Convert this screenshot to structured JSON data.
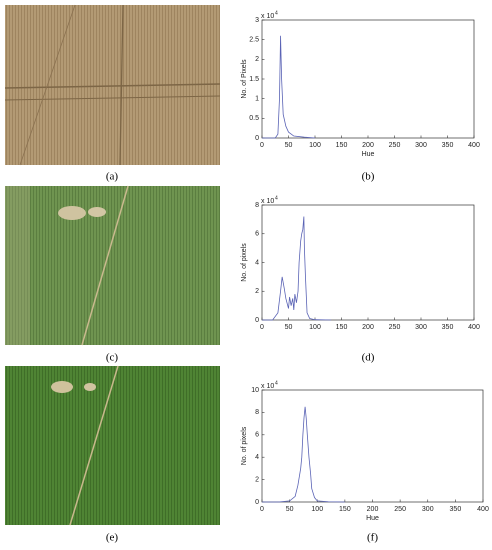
{
  "images": [
    {
      "label": "(a)"
    },
    {
      "label": "(c)"
    },
    {
      "label": "(e)"
    }
  ],
  "chart_data": [
    {
      "type": "line",
      "label": "(b)",
      "xlabel": "Hue",
      "ylabel": "No. of Pixels",
      "scale_base": "x 10",
      "scale_exp": "4",
      "x": [
        0,
        25,
        30,
        33,
        35,
        37,
        40,
        45,
        50,
        60,
        80,
        100
      ],
      "values": [
        0,
        0,
        0.1,
        1.0,
        2.6,
        1.5,
        0.6,
        0.3,
        0.15,
        0.05,
        0.02,
        0
      ],
      "color": "#5a63b5",
      "xlim": [
        0,
        400
      ],
      "ylim": [
        0,
        3
      ],
      "xticks": [
        0,
        50,
        100,
        150,
        200,
        250,
        300,
        350,
        400
      ],
      "yticks": [
        0,
        0.5,
        1,
        1.5,
        2,
        2.5,
        3
      ]
    },
    {
      "type": "line",
      "label": "(d)",
      "ylabel": "No. of pixels",
      "scale_base": "x 10",
      "scale_exp": "4",
      "x": [
        0,
        20,
        30,
        35,
        38,
        42,
        45,
        50,
        52,
        55,
        58,
        60,
        62,
        65,
        68,
        70,
        73,
        75,
        77,
        79,
        80,
        82,
        85,
        90,
        100,
        130
      ],
      "values": [
        0,
        0,
        0.5,
        2,
        3,
        2.2,
        1.5,
        0.8,
        1.6,
        1.0,
        1.5,
        0.7,
        1.8,
        1.2,
        2.0,
        4,
        5.5,
        6,
        6.3,
        7.2,
        5,
        3,
        0.5,
        0.1,
        0.02,
        0
      ],
      "color": "#5a63b5",
      "xlim": [
        0,
        400
      ],
      "ylim": [
        0,
        8
      ],
      "xticks": [
        0,
        50,
        100,
        150,
        200,
        250,
        300,
        350,
        400
      ],
      "yticks": [
        0,
        2,
        4,
        6,
        8
      ]
    },
    {
      "type": "line",
      "label": "(f)",
      "xlabel": "Hue",
      "ylabel": "No. of pixels",
      "scale_base": "x 10",
      "scale_exp": "4",
      "x": [
        0,
        30,
        50,
        60,
        65,
        70,
        72,
        74,
        76,
        78,
        80,
        82,
        85,
        88,
        90,
        95,
        100,
        120,
        150
      ],
      "values": [
        0,
        0,
        0.1,
        0.5,
        1.5,
        3,
        4,
        6,
        7.5,
        8.5,
        7.5,
        6,
        4,
        2.5,
        1.2,
        0.4,
        0.1,
        0.02,
        0
      ],
      "color": "#5a63b5",
      "xlim": [
        0,
        400
      ],
      "ylim": [
        0,
        10
      ],
      "xticks": [
        0,
        50,
        100,
        150,
        200,
        250,
        300,
        350,
        400
      ],
      "yticks": [
        0,
        2,
        4,
        6,
        8,
        10
      ]
    }
  ]
}
